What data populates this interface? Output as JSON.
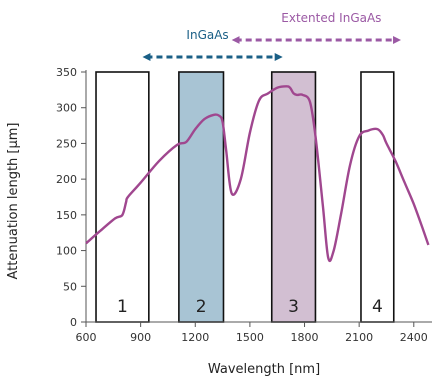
{
  "chart_data": {
    "type": "line",
    "xlabel": "Wavelength [nm]",
    "ylabel": "Attenuation length [µm]",
    "xlim": [
      600,
      2500
    ],
    "ylim": [
      0,
      350
    ],
    "x_ticks": [
      600,
      900,
      1200,
      1500,
      1800,
      2100,
      2400
    ],
    "y_ticks": [
      0,
      50,
      100,
      150,
      200,
      250,
      300,
      350
    ],
    "grid": false,
    "series": [
      {
        "color": "#a0478f",
        "x": [
          600,
          680,
          760,
          800,
          820,
          830,
          900,
          1000,
          1100,
          1150,
          1200,
          1250,
          1300,
          1330,
          1350,
          1370,
          1400,
          1450,
          1500,
          1550,
          1600,
          1650,
          1700,
          1720,
          1740,
          1760,
          1790,
          1830,
          1860,
          1900,
          1930,
          1960,
          2000,
          2050,
          2100,
          2150,
          2200,
          2230,
          2250,
          2300,
          2350,
          2400,
          2450,
          2480
        ],
        "y": [
          110,
          128,
          145,
          150,
          168,
          175,
          195,
          225,
          248,
          252,
          270,
          284,
          290,
          289,
          280,
          240,
          180,
          200,
          265,
          310,
          320,
          328,
          330,
          328,
          320,
          318,
          318,
          308,
          260,
          165,
          90,
          100,
          150,
          220,
          260,
          268,
          270,
          262,
          250,
          225,
          195,
          165,
          130,
          108
        ]
      }
    ],
    "bands": [
      {
        "label": "1",
        "x_start": 655,
        "x_end": 945,
        "fill": "#ffffff"
      },
      {
        "label": "2",
        "x_start": 1110,
        "x_end": 1355,
        "fill": "#a8c4d4"
      },
      {
        "label": "3",
        "x_start": 1620,
        "x_end": 1860,
        "fill": "#d2bfd2"
      },
      {
        "label": "4",
        "x_start": 2110,
        "x_end": 2290,
        "fill": "#ffffff"
      }
    ],
    "ranges": [
      {
        "label": "InGaAs",
        "x_start": 910,
        "x_end": 1680,
        "color": "#1a5f86"
      },
      {
        "label": "Extented InGaAs",
        "x_start": 1400,
        "x_end": 2330,
        "color": "#9b59a4"
      }
    ]
  }
}
